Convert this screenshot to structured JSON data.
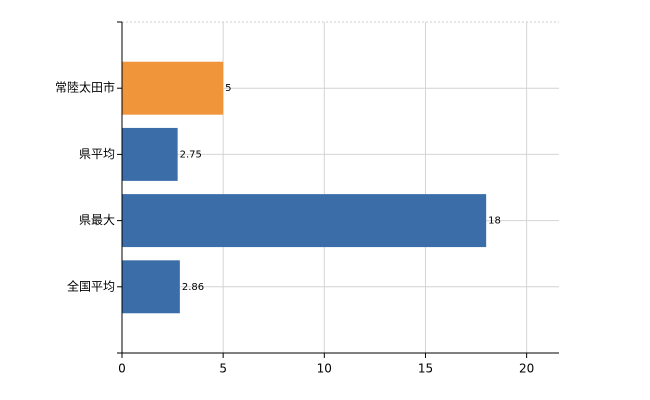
{
  "chart_data": {
    "type": "barh",
    "categories": [
      "常陸太田市",
      "県平均",
      "県最大",
      "全国平均"
    ],
    "values": [
      5,
      2.75,
      18,
      2.86
    ],
    "colors": [
      "#f0953a",
      "#3b6ea9",
      "#3b6ea9",
      "#3b6ea9"
    ],
    "xlim": [
      0,
      21.6
    ],
    "xticks": [
      0,
      5,
      10,
      15,
      20
    ],
    "grid": true
  }
}
